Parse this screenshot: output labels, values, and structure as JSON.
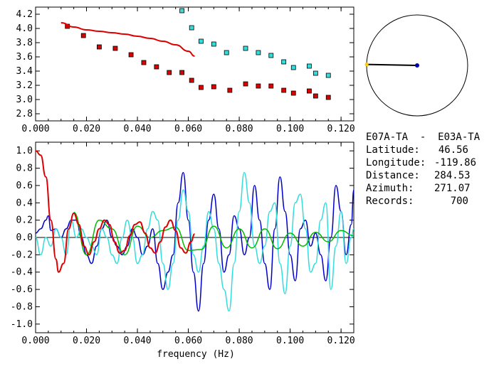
{
  "station_info": {
    "pair": "E07A-TA  -  E03A-TA",
    "latitude_label": "Latitude:",
    "latitude": "46.56",
    "longitude_label": "Longitude:",
    "longitude": "-119.86",
    "distance_label": "Distance:",
    "distance": "284.53",
    "azimuth_label": "Azimuth:",
    "azimuth": "271.07",
    "records_label": "Records:",
    "records": "700"
  },
  "azimuth_plot": {
    "azimuth_deg": 271.07,
    "colors": {
      "circle": "#000000",
      "line": "#000000",
      "end_dot": "#0000aa",
      "start_dot": "#ffcc00"
    }
  },
  "chart_data": [
    {
      "type": "scatter",
      "title": "",
      "xlabel": "",
      "ylabel": "",
      "xlim": [
        0.0,
        0.125
      ],
      "ylim": [
        2.7,
        4.3
      ],
      "xticks": [
        "0.000",
        "0.020",
        "0.040",
        "0.060",
        "0.080",
        "0.100",
        "0.120"
      ],
      "yticks": [
        "2.8",
        "3.0",
        "3.2",
        "3.4",
        "3.6",
        "3.8",
        "4.0",
        "4.2"
      ],
      "series": [
        {
          "marker": "square",
          "color": "#dd0000",
          "x": [
            0.0125,
            0.0188,
            0.025,
            0.0313,
            0.0375,
            0.0425,
            0.0475,
            0.0525,
            0.0575,
            0.0613,
            0.065,
            0.07,
            0.0763,
            0.0825,
            0.0875,
            0.0925,
            0.0975,
            0.1013,
            0.1075,
            0.11,
            0.115
          ],
          "y": [
            4.03,
            3.9,
            3.74,
            3.72,
            3.63,
            3.52,
            3.46,
            3.38,
            3.38,
            3.27,
            3.17,
            3.18,
            3.13,
            3.22,
            3.19,
            3.19,
            3.13,
            3.09,
            3.12,
            3.05,
            3.03
          ]
        },
        {
          "marker": "square",
          "color": "#33dddd",
          "x": [
            0.0575,
            0.0613,
            0.065,
            0.07,
            0.075,
            0.0825,
            0.0875,
            0.0925,
            0.0975,
            0.1013,
            0.1075,
            0.11,
            0.115
          ],
          "y": [
            4.25,
            4.01,
            3.82,
            3.78,
            3.66,
            3.72,
            3.66,
            3.62,
            3.53,
            3.45,
            3.47,
            3.37,
            3.34
          ]
        },
        {
          "marker": "line",
          "color": "#dd0000",
          "x": [
            0.01,
            0.015,
            0.02,
            0.025,
            0.03,
            0.035,
            0.04,
            0.045,
            0.05,
            0.055,
            0.06,
            0.0625
          ],
          "y": [
            4.08,
            4.02,
            3.98,
            3.96,
            3.94,
            3.92,
            3.89,
            3.86,
            3.82,
            3.77,
            3.68,
            3.61
          ]
        }
      ]
    },
    {
      "type": "line",
      "title": "",
      "xlabel": "frequency (Hz)",
      "ylabel": "",
      "xlim": [
        0.0,
        0.125
      ],
      "ylim": [
        -1.1,
        1.1
      ],
      "xticks": [
        "0.000",
        "0.020",
        "0.040",
        "0.060",
        "0.080",
        "0.100",
        "0.120"
      ],
      "yticks": [
        "-1.0",
        "-0.8",
        "-0.6",
        "-0.4",
        "-0.2",
        "0.0",
        "0.2",
        "0.4",
        "0.6",
        "0.8",
        "1.0"
      ],
      "zero_line": true,
      "series": [
        {
          "color": "#0000cc",
          "x": [
            0,
            0.002,
            0.004,
            0.005,
            0.006,
            0.008,
            0.01,
            0.012,
            0.014,
            0.016,
            0.018,
            0.02,
            0.022,
            0.024,
            0.026,
            0.028,
            0.03,
            0.032,
            0.034,
            0.036,
            0.038,
            0.04,
            0.042,
            0.044,
            0.046,
            0.048,
            0.05,
            0.052,
            0.054,
            0.056,
            0.058,
            0.06,
            0.062,
            0.064,
            0.066,
            0.068,
            0.07,
            0.072,
            0.074,
            0.076,
            0.078,
            0.08,
            0.082,
            0.084,
            0.086,
            0.088,
            0.09,
            0.092,
            0.094,
            0.096,
            0.098,
            0.1,
            0.102,
            0.104,
            0.106,
            0.108,
            0.11,
            0.112,
            0.114,
            0.116,
            0.118,
            0.12,
            0.122,
            0.124,
            0.125
          ],
          "y": [
            0.05,
            0.1,
            0.2,
            0.25,
            0.08,
            0.1,
            0.0,
            0.1,
            0.2,
            0.2,
            0.0,
            -0.2,
            -0.3,
            -0.1,
            0.1,
            0.2,
            0.0,
            -0.1,
            -0.2,
            -0.1,
            0.1,
            0.0,
            -0.2,
            -0.1,
            0.1,
            -0.3,
            -0.6,
            -0.4,
            -0.2,
            0.4,
            0.75,
            0.2,
            -0.4,
            -0.85,
            -0.3,
            0.2,
            0.5,
            0.1,
            -0.4,
            -0.2,
            0.25,
            0.1,
            -0.2,
            0.0,
            0.6,
            0.2,
            -0.3,
            -0.6,
            0.1,
            0.7,
            0.3,
            -0.2,
            -0.5,
            0.1,
            0.2,
            -0.1,
            0.05,
            -0.2,
            -0.5,
            0.0,
            0.6,
            0.3,
            -0.2,
            0.15,
            0.55
          ]
        },
        {
          "color": "#33dddd",
          "x": [
            0,
            0.002,
            0.004,
            0.006,
            0.008,
            0.01,
            0.012,
            0.014,
            0.016,
            0.018,
            0.02,
            0.022,
            0.024,
            0.026,
            0.028,
            0.03,
            0.032,
            0.034,
            0.036,
            0.038,
            0.04,
            0.042,
            0.044,
            0.046,
            0.048,
            0.05,
            0.052,
            0.054,
            0.056,
            0.058,
            0.06,
            0.062,
            0.064,
            0.066,
            0.068,
            0.07,
            0.072,
            0.074,
            0.076,
            0.078,
            0.08,
            0.082,
            0.084,
            0.086,
            0.088,
            0.09,
            0.092,
            0.094,
            0.096,
            0.098,
            0.1,
            0.102,
            0.104,
            0.106,
            0.108,
            0.11,
            0.112,
            0.114,
            0.116,
            0.118,
            0.12,
            0.122,
            0.124,
            0.125
          ],
          "y": [
            0.0,
            -0.2,
            0.0,
            -0.1,
            0.1,
            0.0,
            -0.2,
            0.2,
            0.0,
            0.1,
            0.0,
            -0.1,
            -0.2,
            0.1,
            0.0,
            -0.2,
            -0.3,
            0.0,
            0.2,
            0.0,
            -0.3,
            -0.2,
            0.1,
            0.3,
            0.2,
            -0.3,
            -0.6,
            -0.3,
            0.2,
            0.55,
            0.3,
            -0.2,
            -0.4,
            -0.1,
            0.3,
            0.1,
            -0.3,
            -0.6,
            -0.85,
            -0.3,
            0.3,
            0.75,
            0.4,
            -0.1,
            -0.3,
            -0.1,
            0.3,
            0.4,
            -0.3,
            -0.65,
            -0.1,
            0.4,
            0.5,
            0.1,
            -0.4,
            -0.3,
            0.2,
            0.4,
            -0.6,
            -0.1,
            0.3,
            -0.3,
            0.0,
            0.1
          ]
        },
        {
          "color": "#00bb00",
          "x": [
            0.015,
            0.02,
            0.025,
            0.03,
            0.035,
            0.04,
            0.045,
            0.05,
            0.055,
            0.06,
            0.065,
            0.07,
            0.075,
            0.08,
            0.085,
            0.09,
            0.095,
            0.1,
            0.105,
            0.11,
            0.115,
            0.12,
            0.125
          ],
          "y": [
            0.29,
            -0.2,
            0.2,
            0.1,
            -0.2,
            0.13,
            0.0,
            0.08,
            0.12,
            -0.15,
            -0.14,
            0.13,
            -0.12,
            0.1,
            -0.12,
            0.1,
            -0.13,
            0.05,
            -0.1,
            0.06,
            -0.05,
            0.08,
            0.02
          ]
        },
        {
          "color": "#dd0000",
          "x": [
            0.0,
            0.002,
            0.004,
            0.006,
            0.008,
            0.009,
            0.011,
            0.013,
            0.015,
            0.017,
            0.019,
            0.021,
            0.023,
            0.025,
            0.027,
            0.029,
            0.031,
            0.033,
            0.035,
            0.037,
            0.039,
            0.041,
            0.043,
            0.045,
            0.047,
            0.049,
            0.051,
            0.053,
            0.055,
            0.057,
            0.059,
            0.061,
            0.0625
          ],
          "y": [
            1.0,
            0.95,
            0.7,
            0.2,
            -0.25,
            -0.4,
            -0.3,
            0.1,
            0.28,
            0.15,
            -0.1,
            -0.2,
            -0.05,
            0.1,
            0.2,
            0.15,
            -0.05,
            -0.18,
            -0.15,
            0.02,
            0.15,
            0.18,
            0.05,
            -0.12,
            -0.18,
            -0.05,
            0.12,
            0.2,
            0.08,
            -0.12,
            -0.18,
            -0.05,
            0.04
          ]
        }
      ]
    }
  ]
}
